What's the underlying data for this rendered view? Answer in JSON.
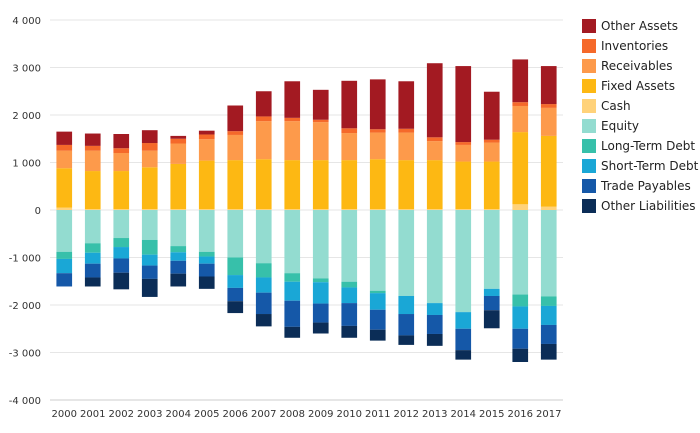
{
  "chart_data": {
    "type": "bar",
    "stacked": true,
    "categories": [
      "2000",
      "2001",
      "2002",
      "2003",
      "2004",
      "2005",
      "2006",
      "2007",
      "2008",
      "2009",
      "2010",
      "2011",
      "2012",
      "2013",
      "2014",
      "2015",
      "2016",
      "2017"
    ],
    "ylim": [
      -4000,
      4000
    ],
    "yticks": [
      4000,
      3000,
      2000,
      1000,
      0,
      -1000,
      -2000,
      -3000,
      -4000
    ],
    "ytick_labels": [
      "4 000",
      "3 000",
      "2 000",
      "1 000",
      "0",
      "-1 000",
      "-2 000",
      "-3 000",
      "-4 000"
    ],
    "grid": "horizontal",
    "legend_position": "right",
    "series": [
      {
        "name": "Other Liabilities",
        "color": "#0b2d57",
        "values": [
          0,
          0,
          0,
          0,
          0,
          0,
          0,
          0,
          0,
          0,
          0,
          0,
          0,
          0,
          0,
          0,
          0,
          0
        ],
        "neg": [
          0,
          -190,
          -350,
          -380,
          -270,
          -260,
          -250,
          -260,
          -230,
          -230,
          -250,
          -230,
          -200,
          -250,
          -200,
          -380,
          -280,
          -330
        ]
      },
      {
        "name": "Trade Payables",
        "color": "#1558a8",
        "values": [
          0,
          0,
          0,
          0,
          0,
          0,
          0,
          0,
          0,
          0,
          0,
          0,
          0,
          0,
          0,
          0,
          0,
          0
        ],
        "neg": [
          -280,
          -290,
          -300,
          -280,
          -270,
          -270,
          -280,
          -450,
          -550,
          -400,
          -480,
          -420,
          -450,
          -400,
          -450,
          -300,
          -420,
          -400
        ]
      },
      {
        "name": "Short-Term Debt",
        "color": "#1aa7d6",
        "values": [
          0,
          0,
          0,
          0,
          0,
          0,
          0,
          0,
          0,
          0,
          0,
          0,
          0,
          0,
          0,
          0,
          0,
          0
        ],
        "neg": [
          -300,
          -230,
          -240,
          -230,
          -180,
          -150,
          -270,
          -320,
          -400,
          -450,
          -330,
          -350,
          -380,
          -250,
          -350,
          -150,
          -470,
          -400
        ]
      },
      {
        "name": "Long-Term Debt",
        "color": "#37c0aa",
        "values": [
          0,
          0,
          0,
          0,
          0,
          0,
          0,
          0,
          0,
          0,
          0,
          0,
          0,
          0,
          0,
          0,
          0,
          0
        ],
        "neg": [
          -150,
          -200,
          -190,
          -310,
          -130,
          -100,
          -370,
          -300,
          -180,
          -80,
          -120,
          -50,
          0,
          0,
          0,
          0,
          -250,
          -200
        ]
      },
      {
        "name": "Equity",
        "color": "#93dcd0",
        "values": [
          0,
          0,
          0,
          0,
          0,
          0,
          0,
          0,
          0,
          0,
          0,
          0,
          0,
          0,
          0,
          0,
          0,
          0
        ],
        "neg": [
          -880,
          -700,
          -590,
          -630,
          -760,
          -880,
          -1000,
          -1120,
          -1330,
          -1440,
          -1510,
          -1700,
          -1810,
          -1960,
          -2150,
          -1660,
          -1780,
          -1820
        ]
      },
      {
        "name": "Cash",
        "color": "#ffd27a",
        "values": [
          50,
          20,
          20,
          20,
          20,
          20,
          20,
          20,
          20,
          20,
          20,
          20,
          20,
          20,
          20,
          20,
          120,
          70
        ],
        "neg": [
          0,
          0,
          0,
          0,
          0,
          0,
          0,
          0,
          0,
          0,
          0,
          0,
          0,
          0,
          0,
          0,
          0,
          0
        ]
      },
      {
        "name": "Fixed Assets",
        "color": "#fdb813",
        "values": [
          830,
          800,
          800,
          880,
          950,
          1020,
          1030,
          1050,
          1030,
          1030,
          1030,
          1050,
          1030,
          1030,
          1000,
          1000,
          1520,
          1490
        ]
      },
      {
        "name": "Receivables",
        "color": "#fd9a4b",
        "values": [
          370,
          430,
          380,
          350,
          430,
          450,
          530,
          800,
          820,
          800,
          570,
          560,
          580,
          400,
          350,
          400,
          550,
          590
        ]
      },
      {
        "name": "Inventories",
        "color": "#f5692a",
        "values": [
          120,
          100,
          100,
          160,
          100,
          100,
          80,
          100,
          70,
          50,
          100,
          70,
          80,
          80,
          60,
          60,
          80,
          80
        ]
      },
      {
        "name": "Other Assets",
        "color": "#a31a22",
        "values": [
          280,
          260,
          300,
          270,
          60,
          80,
          540,
          530,
          770,
          630,
          1000,
          1050,
          1000,
          1560,
          1600,
          1010,
          900,
          800
        ]
      }
    ]
  }
}
